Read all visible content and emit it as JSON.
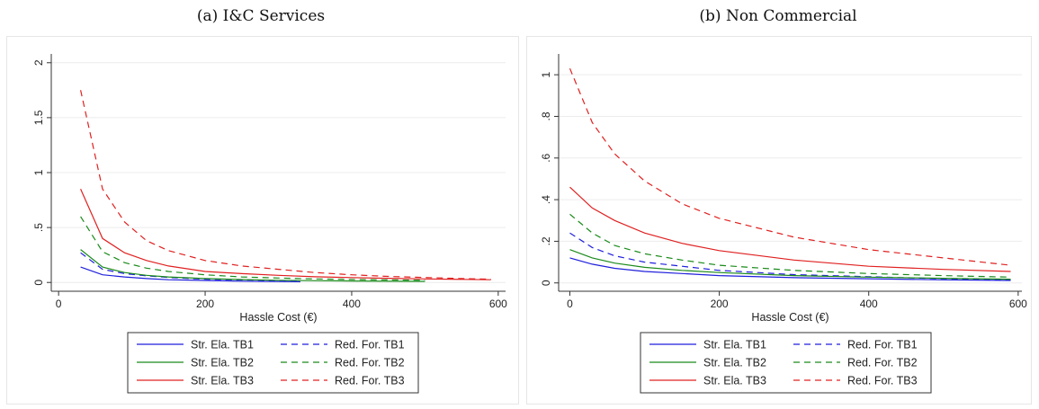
{
  "figure": {
    "subtitles": [
      "(a) I&C Services",
      "(b) Non Commercial"
    ]
  },
  "chart_data": [
    {
      "type": "line",
      "title": "(a) I&C Services",
      "xlabel": "Hassle Cost (€)",
      "ylabel": "",
      "xlim": [
        -10,
        610
      ],
      "ylim": [
        -0.08,
        2.08
      ],
      "xticks": [
        0,
        200,
        400,
        600
      ],
      "yticks": [
        0,
        0.5,
        1,
        1.5,
        2
      ],
      "ytick_labels": [
        "0",
        ".5",
        "1",
        "1.5",
        "2"
      ],
      "grid": true,
      "legend": "bottom-center",
      "series": [
        {
          "name": "Str. Ela. TB1",
          "color": "#1f1fdc",
          "dash": "solid",
          "x": [
            30,
            60,
            90,
            120,
            150,
            200,
            250,
            300,
            330
          ],
          "y": [
            0.14,
            0.07,
            0.05,
            0.035,
            0.025,
            0.018,
            0.012,
            0.008,
            0.007
          ]
        },
        {
          "name": "Red. For. TB1",
          "color": "#1f1fdc",
          "dash": "dashed",
          "x": [
            30,
            60,
            90,
            120,
            150,
            200,
            250,
            300,
            330
          ],
          "y": [
            0.27,
            0.12,
            0.08,
            0.06,
            0.045,
            0.03,
            0.022,
            0.017,
            0.014
          ]
        },
        {
          "name": "Str. Ela. TB2",
          "color": "#1a8a1a",
          "dash": "solid",
          "x": [
            30,
            60,
            90,
            120,
            150,
            200,
            250,
            300,
            350,
            400,
            450,
            500
          ],
          "y": [
            0.3,
            0.14,
            0.09,
            0.065,
            0.05,
            0.035,
            0.026,
            0.02,
            0.016,
            0.013,
            0.011,
            0.01
          ]
        },
        {
          "name": "Red. For. TB2",
          "color": "#1a8a1a",
          "dash": "dashed",
          "x": [
            30,
            60,
            90,
            120,
            150,
            200,
            250,
            300,
            350,
            400,
            450,
            500
          ],
          "y": [
            0.6,
            0.28,
            0.18,
            0.13,
            0.1,
            0.07,
            0.05,
            0.04,
            0.032,
            0.027,
            0.023,
            0.02
          ]
        },
        {
          "name": "Str. Ela. TB3",
          "color": "#e02020",
          "dash": "solid",
          "x": [
            30,
            60,
            90,
            120,
            150,
            200,
            250,
            300,
            350,
            400,
            450,
            500,
            550,
            590
          ],
          "y": [
            0.85,
            0.4,
            0.27,
            0.2,
            0.15,
            0.1,
            0.08,
            0.065,
            0.052,
            0.044,
            0.038,
            0.032,
            0.028,
            0.025
          ]
        },
        {
          "name": "Red. For. TB3",
          "color": "#e02020",
          "dash": "dashed",
          "x": [
            30,
            60,
            90,
            120,
            150,
            200,
            250,
            300,
            350,
            400,
            450,
            500,
            550,
            590
          ],
          "y": [
            1.75,
            0.85,
            0.55,
            0.38,
            0.29,
            0.2,
            0.15,
            0.12,
            0.09,
            0.07,
            0.055,
            0.045,
            0.035,
            0.03
          ]
        }
      ]
    },
    {
      "type": "line",
      "title": "(b) Non Commercial",
      "xlabel": "Hassle Cost (€)",
      "ylabel": "",
      "xlim": [
        -15,
        605
      ],
      "ylim": [
        -0.04,
        1.1
      ],
      "xticks": [
        0,
        200,
        400,
        600
      ],
      "yticks": [
        0,
        0.2,
        0.4,
        0.6,
        0.8,
        1
      ],
      "ytick_labels": [
        "0",
        ".2",
        ".4",
        ".6",
        ".8",
        "1"
      ],
      "grid": true,
      "legend": "bottom-center",
      "series": [
        {
          "name": "Str. Ela. TB1",
          "color": "#1f1fdc",
          "dash": "solid",
          "x": [
            0,
            30,
            60,
            100,
            150,
            200,
            300,
            400,
            500,
            590
          ],
          "y": [
            0.12,
            0.09,
            0.07,
            0.055,
            0.045,
            0.035,
            0.025,
            0.02,
            0.015,
            0.012
          ]
        },
        {
          "name": "Red. For. TB1",
          "color": "#1f1fdc",
          "dash": "dashed",
          "x": [
            0,
            30,
            60,
            100,
            150,
            200,
            300,
            400,
            500,
            590
          ],
          "y": [
            0.24,
            0.17,
            0.13,
            0.1,
            0.08,
            0.06,
            0.04,
            0.03,
            0.02,
            0.015
          ]
        },
        {
          "name": "Str. Ela. TB2",
          "color": "#1a8a1a",
          "dash": "solid",
          "x": [
            0,
            30,
            60,
            100,
            150,
            200,
            300,
            400,
            500,
            590
          ],
          "y": [
            0.16,
            0.12,
            0.095,
            0.075,
            0.06,
            0.05,
            0.035,
            0.028,
            0.022,
            0.018
          ]
        },
        {
          "name": "Red. For. TB2",
          "color": "#1a8a1a",
          "dash": "dashed",
          "x": [
            0,
            30,
            60,
            100,
            150,
            200,
            300,
            400,
            500,
            590
          ],
          "y": [
            0.33,
            0.24,
            0.18,
            0.14,
            0.11,
            0.085,
            0.06,
            0.045,
            0.035,
            0.028
          ]
        },
        {
          "name": "Str. Ela. TB3",
          "color": "#e02020",
          "dash": "solid",
          "x": [
            0,
            30,
            60,
            100,
            150,
            200,
            300,
            400,
            500,
            590
          ],
          "y": [
            0.46,
            0.36,
            0.3,
            0.24,
            0.19,
            0.155,
            0.11,
            0.08,
            0.065,
            0.055
          ]
        },
        {
          "name": "Red. For. TB3",
          "color": "#e02020",
          "dash": "dashed",
          "x": [
            0,
            30,
            60,
            100,
            150,
            200,
            300,
            400,
            500,
            590
          ],
          "y": [
            1.03,
            0.77,
            0.62,
            0.49,
            0.38,
            0.31,
            0.22,
            0.16,
            0.12,
            0.085
          ]
        }
      ]
    }
  ]
}
